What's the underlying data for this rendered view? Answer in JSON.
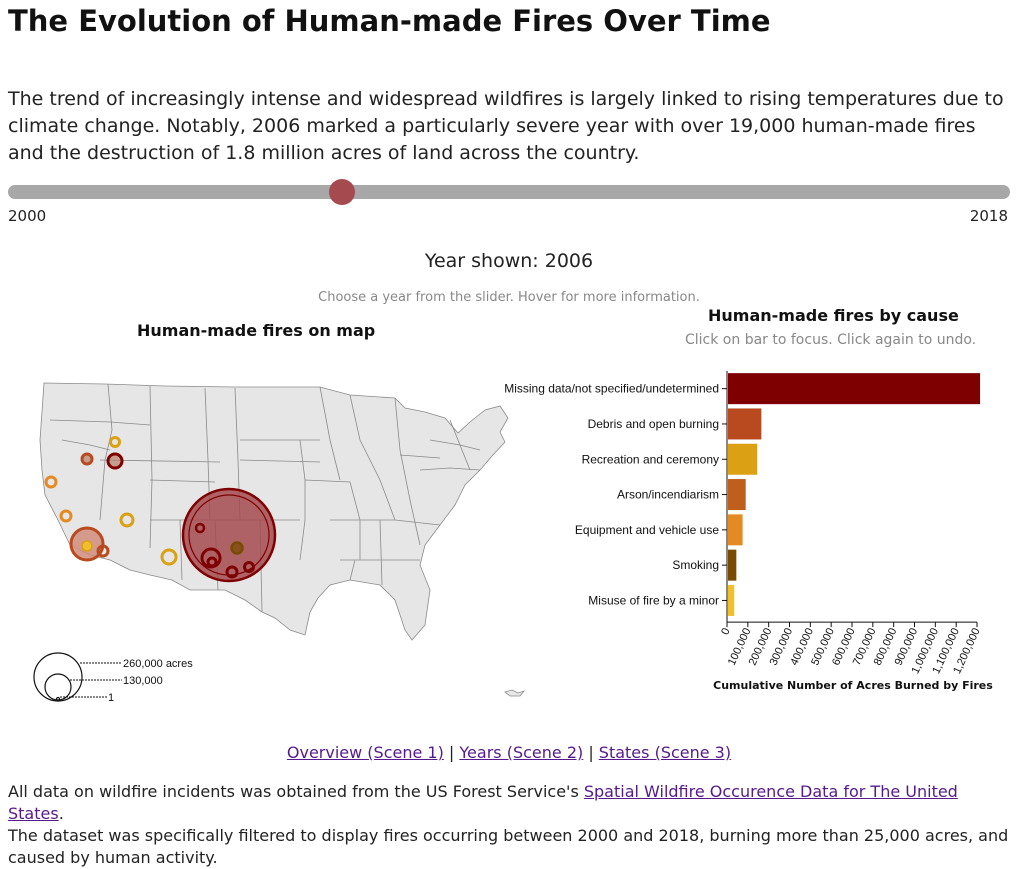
{
  "page": {
    "title": "The Evolution of Human-made Fires Over Time",
    "intro": "The trend of increasingly intense and widespread wildfires is largely linked to rising temperatures due to climate change. Notably, 2006 marked a particularly severe year with over 19,000 human-made fires and the destruction of 1.8 million acres of land across the country.",
    "year_shown": "Year shown: 2006",
    "instructions": "Choose a year from the slider. Hover for more information."
  },
  "slider": {
    "min_label": "2000",
    "max_label": "2018",
    "min": 2000,
    "max": 2018,
    "value": 2006
  },
  "map": {
    "title": "Human-made fires on map",
    "legend": [
      "260,000 acres",
      "130,000",
      "1"
    ]
  },
  "chart_data": {
    "type": "bar",
    "title": "Human-made fires by cause",
    "subtitle": "Click on bar to focus. Click again to undo.",
    "xlabel": "Cumulative Number of Acres Burned by Fires",
    "orientation": "horizontal",
    "xlim": [
      0,
      1200000
    ],
    "ticks": [
      0,
      100000,
      200000,
      300000,
      400000,
      500000,
      600000,
      700000,
      800000,
      900000,
      1000000,
      1100000,
      1200000
    ],
    "tick_labels": [
      "0",
      "100,000",
      "200,000",
      "300,000",
      "400,000",
      "500,000",
      "600,000",
      "700,000",
      "800,000",
      "900,000",
      "1,000,000",
      "1,100,000",
      "1,200,000"
    ],
    "categories": [
      "Missing data/not specified/undetermined",
      "Debris and open burning",
      "Recreation and ceremony",
      "Arson/incendiarism",
      "Equipment and vehicle use",
      "Smoking",
      "Misuse of fire by a minor"
    ],
    "values": [
      1210000,
      160000,
      140000,
      85000,
      70000,
      40000,
      30000
    ],
    "colors": [
      "#7f0000",
      "#b94a1f",
      "#dba014",
      "#be5f1c",
      "#e38a23",
      "#7a4a00",
      "#f0c02a"
    ]
  },
  "nav": {
    "overview": "Overview (Scene 1)",
    "years": "Years (Scene 2)",
    "states": "States (Scene 3)",
    "separator": " | "
  },
  "footer": {
    "prefix": "All data on wildfire incidents was obtained from the US Forest Service's ",
    "link": "Spatial Wildfire Occurence Data for The United States",
    "suffix": ".",
    "line2": "The dataset was specifically filtered to display fires occurring between 2000 and 2018, burning more than 25,000 acres, and caused by human activity."
  },
  "colors": {
    "accent": "#a54a4e",
    "fire_dark": "#7f0000",
    "fire_orange": "#e38a23",
    "fire_yellow": "#dba014"
  }
}
